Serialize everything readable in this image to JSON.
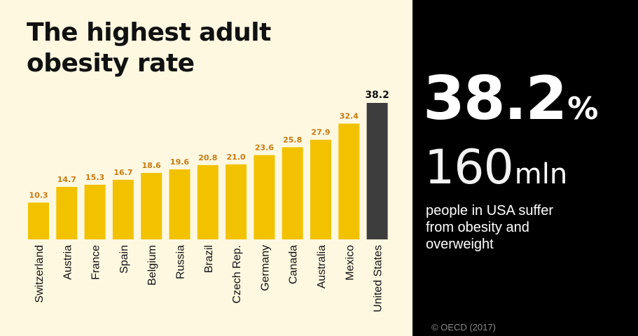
{
  "title": {
    "line1": "The highest adult",
    "line2": "obesity rate"
  },
  "colors": {
    "default_bar": "#f2c200",
    "highlight_bar": "#3d3d3d",
    "value_label": "#c77a10",
    "highlight_label": "#111111"
  },
  "chart_data": {
    "type": "bar",
    "categories": [
      "Switzerland",
      "Austria",
      "France",
      "Spain",
      "Belgium",
      "Russia",
      "Brazil",
      "Czech Rep.",
      "Germany",
      "Canada",
      "Australia",
      "Mexico",
      "United States"
    ],
    "values": [
      10.3,
      14.7,
      15.3,
      16.7,
      18.6,
      19.6,
      20.8,
      21.0,
      23.6,
      25.8,
      27.9,
      32.4,
      38.2
    ],
    "value_labels": [
      "10.3",
      "14.7",
      "15.3",
      "16.7",
      "18.6",
      "19.6",
      "20.8",
      "21.0",
      "23.6",
      "25.8",
      "27.9",
      "32.4",
      "38.2"
    ],
    "highlight": "United States",
    "title": "The highest adult obesity rate",
    "xlabel": "",
    "ylabel": "",
    "ylim": [
      0,
      38.2
    ],
    "grid": false
  },
  "highlight_panel": {
    "percent_value": "38.2",
    "percent_symbol": "%",
    "count_value": "160",
    "count_unit": "mln",
    "desc_line1": "people in USA suffer",
    "desc_line2": "from obesity and",
    "desc_line3": "overweight"
  },
  "source": "© OECD (2017)"
}
